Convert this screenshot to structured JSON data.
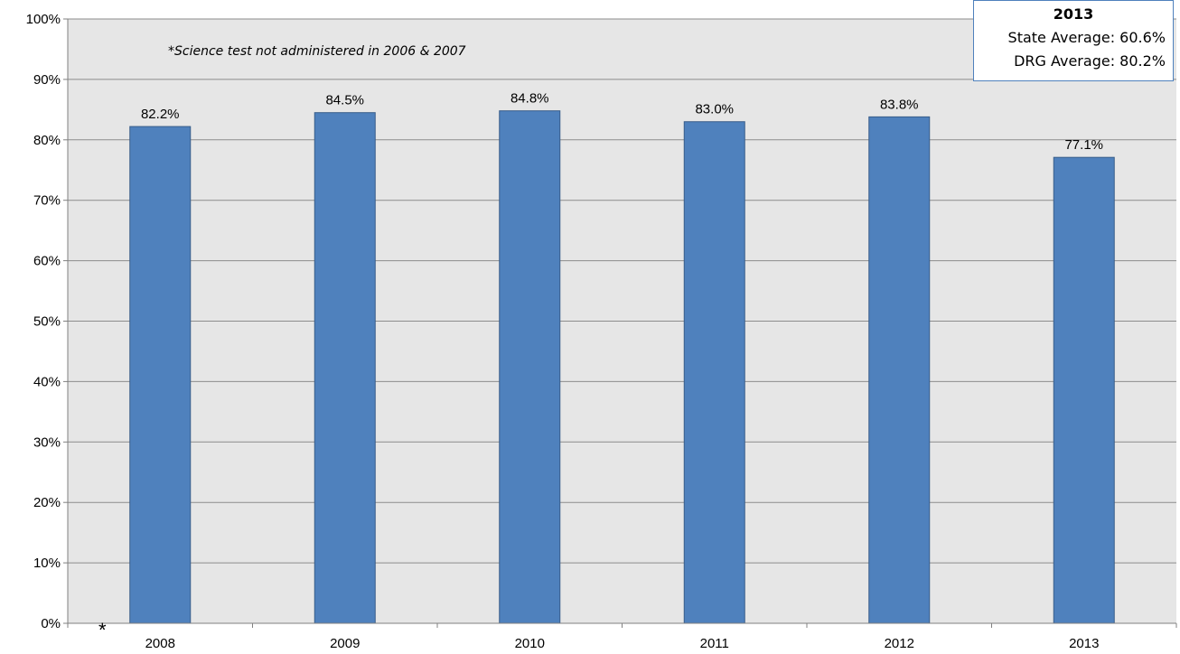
{
  "chart_data": {
    "type": "bar",
    "categories": [
      "2008",
      "2009",
      "2010",
      "2011",
      "2012",
      "2013"
    ],
    "values": [
      82.2,
      84.5,
      84.8,
      83.0,
      83.8,
      77.1
    ],
    "data_labels": [
      "82.2%",
      "84.5%",
      "84.8%",
      "83.0%",
      "83.8%",
      "77.1%"
    ],
    "y_ticks": [
      "0%",
      "10%",
      "20%",
      "30%",
      "40%",
      "50%",
      "60%",
      "70%",
      "80%",
      "90%",
      "100%"
    ],
    "ylim": [
      0,
      100
    ],
    "grid": true,
    "bar_color": "#4f81bd",
    "plot_background": "#e6e6e6",
    "note": "*Science test not administered in 2006 & 2007",
    "axis_marker": "*",
    "legend": null
  },
  "summary_box": {
    "year": "2013",
    "state_label": "State Average:",
    "state_value": "60.6%",
    "drg_label": "DRG Average:",
    "drg_value": "80.2%"
  }
}
